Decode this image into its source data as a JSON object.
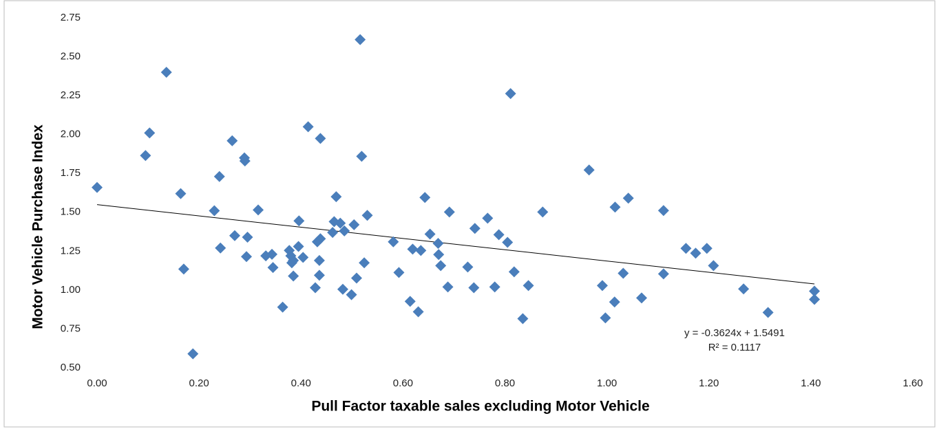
{
  "chart_data": {
    "type": "scatter",
    "x_label": "Pull Factor taxable sales excluding Motor Vehicle",
    "y_label": "Motor Vehicle Purchase Index",
    "x": [
      0.0,
      0.095,
      0.103,
      0.136,
      0.164,
      0.17,
      0.188,
      0.23,
      0.24,
      0.242,
      0.265,
      0.27,
      0.289,
      0.29,
      0.295,
      0.293,
      0.316,
      0.331,
      0.343,
      0.345,
      0.364,
      0.377,
      0.38,
      0.382,
      0.385,
      0.385,
      0.395,
      0.396,
      0.404,
      0.414,
      0.428,
      0.432,
      0.436,
      0.436,
      0.438,
      0.438,
      0.462,
      0.465,
      0.469,
      0.477,
      0.482,
      0.485,
      0.499,
      0.504,
      0.509,
      0.516,
      0.519,
      0.524,
      0.53,
      0.581,
      0.592,
      0.614,
      0.619,
      0.63,
      0.635,
      0.643,
      0.653,
      0.669,
      0.67,
      0.674,
      0.688,
      0.691,
      0.727,
      0.741,
      0.739,
      0.766,
      0.78,
      0.788,
      0.805,
      0.811,
      0.818,
      0.835,
      0.846,
      0.874,
      0.965,
      0.991,
      0.997,
      1.015,
      1.016,
      1.032,
      1.042,
      1.068,
      1.111,
      1.111,
      1.155,
      1.174,
      1.196,
      1.209,
      1.268,
      1.316,
      1.407,
      1.407
    ],
    "values": [
      1.66,
      1.865,
      2.01,
      2.4,
      1.62,
      1.135,
      0.59,
      1.51,
      1.73,
      1.27,
      1.96,
      1.35,
      1.85,
      1.83,
      1.34,
      1.215,
      1.515,
      1.22,
      1.23,
      1.145,
      0.89,
      1.255,
      1.22,
      1.175,
      1.19,
      1.09,
      1.28,
      1.445,
      1.21,
      2.05,
      1.015,
      1.31,
      1.19,
      1.095,
      1.33,
      1.975,
      1.37,
      1.44,
      1.6,
      1.43,
      1.005,
      1.38,
      0.97,
      1.42,
      1.077,
      2.61,
      1.86,
      1.175,
      1.48,
      1.31,
      1.113,
      0.927,
      1.263,
      0.86,
      1.254,
      1.595,
      1.36,
      1.3,
      1.228,
      1.157,
      1.02,
      1.502,
      1.148,
      1.396,
      1.015,
      1.462,
      1.02,
      1.356,
      1.307,
      2.263,
      1.117,
      0.816,
      1.029,
      1.502,
      1.772,
      1.029,
      0.821,
      0.923,
      1.533,
      1.108,
      1.591,
      0.949,
      1.511,
      1.104,
      1.268,
      1.237,
      1.268,
      1.157,
      1.007,
      0.856,
      0.993,
      0.94
    ],
    "color": "#4a7ebb",
    "xlim": [
      0,
      1.6
    ],
    "xticks": [
      {
        "value": 0,
        "label": "0.00"
      },
      {
        "value": 0.2,
        "label": "0.20"
      },
      {
        "value": 0.4,
        "label": "0.40"
      },
      {
        "value": 0.6,
        "label": "0.60"
      },
      {
        "value": 0.8,
        "label": "0.80"
      },
      {
        "value": 1,
        "label": "1.00"
      },
      {
        "value": 1.2,
        "label": "1.20"
      },
      {
        "value": 1.4,
        "label": "1.40"
      },
      {
        "value": 1.6,
        "label": "1.60"
      }
    ],
    "ylim": [
      0.5,
      2.75
    ],
    "yticks": [
      {
        "value": 0.5,
        "label": "0.50"
      },
      0.75,
      {
        "value": 1,
        "label": "1.00"
      },
      1.25,
      {
        "value": 1.5,
        "label": "1.50"
      },
      1.75,
      {
        "value": 2,
        "label": "2.00"
      },
      2.25,
      {
        "value": 2.5,
        "label": "2.50"
      },
      2.75
    ],
    "trendline": {
      "slope": -0.3624,
      "intercept": 1.5491,
      "equation": "y = -0.3624x + 1.5491",
      "r_squared": "R² = 0.1117"
    }
  }
}
